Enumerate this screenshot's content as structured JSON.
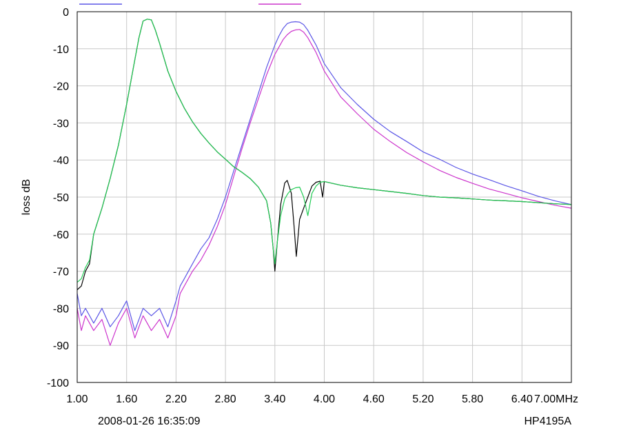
{
  "footer": {
    "timestamp": "2008-01-26 16:35:09",
    "instrument": "HP4195A"
  },
  "chart_data": {
    "type": "line",
    "title": "",
    "xlabel": "",
    "ylabel": "loss dB",
    "x_unit": "MHz",
    "xlim": [
      1.0,
      7.0
    ],
    "ylim": [
      -100,
      0
    ],
    "x_ticks": [
      "1.00",
      "1.60",
      "2.20",
      "2.80",
      "3.40",
      "4.00",
      "4.60",
      "5.20",
      "5.80",
      "6.40",
      "7.00MHz"
    ],
    "x_tick_values": [
      1.0,
      1.6,
      2.2,
      2.8,
      3.4,
      4.0,
      4.6,
      5.2,
      5.8,
      6.4,
      7.0
    ],
    "y_ticks": [
      "0",
      "-10",
      "-20",
      "-30",
      "-40",
      "-50",
      "-60",
      "-70",
      "-80",
      "-90",
      "-100"
    ],
    "y_tick_values": [
      0,
      -10,
      -20,
      -30,
      -40,
      -50,
      -60,
      -70,
      -80,
      -90,
      -100
    ],
    "grid": true,
    "legend": "top",
    "series": [
      {
        "name": "",
        "color": "#5a55e6",
        "x": [
          1.0,
          1.05,
          1.1,
          1.2,
          1.3,
          1.4,
          1.5,
          1.6,
          1.7,
          1.8,
          1.9,
          2.0,
          2.1,
          2.2,
          2.25,
          2.3,
          2.4,
          2.5,
          2.6,
          2.7,
          2.8,
          2.9,
          3.0,
          3.1,
          3.2,
          3.3,
          3.4,
          3.45,
          3.5,
          3.55,
          3.6,
          3.65,
          3.7,
          3.75,
          3.8,
          3.9,
          4.0,
          4.2,
          4.4,
          4.6,
          4.8,
          5.0,
          5.2,
          5.4,
          5.6,
          5.8,
          6.0,
          6.2,
          6.4,
          6.6,
          6.8,
          7.0
        ],
        "y": [
          -76,
          -82,
          -80,
          -84,
          -80,
          -85,
          -82,
          -78,
          -86,
          -80,
          -82,
          -80,
          -85,
          -78,
          -74,
          -72,
          -68,
          -64,
          -61,
          -56,
          -50,
          -43,
          -36,
          -29,
          -22,
          -15,
          -9,
          -6.5,
          -4.5,
          -3.2,
          -2.8,
          -2.7,
          -2.8,
          -3.5,
          -5,
          -9,
          -14,
          -20.5,
          -25,
          -29,
          -32.3,
          -35,
          -37.8,
          -39.8,
          -42,
          -43.8,
          -45.3,
          -46.9,
          -48.3,
          -49.8,
          -51,
          -52
        ]
      },
      {
        "name": "",
        "color": "#cc33cc",
        "x": [
          1.0,
          1.05,
          1.1,
          1.2,
          1.3,
          1.4,
          1.5,
          1.6,
          1.7,
          1.8,
          1.9,
          2.0,
          2.1,
          2.2,
          2.25,
          2.3,
          2.4,
          2.5,
          2.6,
          2.7,
          2.8,
          2.9,
          3.0,
          3.1,
          3.2,
          3.3,
          3.4,
          3.5,
          3.55,
          3.6,
          3.65,
          3.7,
          3.75,
          3.8,
          3.9,
          4.0,
          4.2,
          4.4,
          4.6,
          4.8,
          5.0,
          5.2,
          5.4,
          5.6,
          5.8,
          6.0,
          6.2,
          6.4,
          6.6,
          6.8,
          7.0
        ],
        "y": [
          -80,
          -86,
          -82,
          -86,
          -83,
          -90,
          -84,
          -80,
          -88,
          -82,
          -86,
          -83,
          -88,
          -82,
          -76,
          -74,
          -70,
          -67,
          -63,
          -58,
          -52,
          -44.5,
          -37,
          -30,
          -23.5,
          -17,
          -11.5,
          -7.5,
          -6.2,
          -5.3,
          -4.9,
          -4.8,
          -5.5,
          -7,
          -11,
          -16,
          -23,
          -27.5,
          -31.7,
          -35,
          -38,
          -40.5,
          -42.8,
          -44.7,
          -46.3,
          -47.8,
          -49,
          -50.2,
          -51.2,
          -52.2,
          -53
        ]
      },
      {
        "name": "",
        "color": "#000000",
        "x": [
          1.0,
          1.05,
          1.1,
          1.15,
          1.2,
          1.3,
          1.4,
          1.5,
          1.6,
          1.7,
          1.75,
          1.8,
          1.85,
          1.9,
          1.95,
          2.0,
          2.1,
          2.2,
          2.3,
          2.4,
          2.5,
          2.6,
          2.7,
          2.8,
          2.9,
          3.0,
          3.1,
          3.2,
          3.3,
          3.35,
          3.38,
          3.4,
          3.43,
          3.47,
          3.52,
          3.55,
          3.6,
          3.63,
          3.66,
          3.7,
          3.75,
          3.8,
          3.85,
          3.9,
          3.95,
          3.98,
          4.0,
          4.2,
          4.4,
          4.6,
          4.8,
          5.0,
          5.2,
          5.4,
          5.6,
          5.8,
          6.0,
          6.2,
          6.4,
          6.6,
          6.8,
          7.0
        ],
        "y": [
          -75,
          -74,
          -70,
          -68,
          -60,
          -53,
          -45,
          -36,
          -25,
          -13,
          -7,
          -2.5,
          -2,
          -2.2,
          -5,
          -8.5,
          -16,
          -21.5,
          -26,
          -29.7,
          -32.8,
          -35.4,
          -37.8,
          -39.8,
          -41.8,
          -43.3,
          -45,
          -47.3,
          -51,
          -57,
          -64,
          -70,
          -62,
          -52,
          -46.2,
          -45.5,
          -49,
          -57,
          -66,
          -56,
          -53,
          -50,
          -47,
          -46,
          -45.7,
          -50,
          -45.8,
          -46.8,
          -47.5,
          -48,
          -48.5,
          -49,
          -49.6,
          -50,
          -50.2,
          -50.5,
          -50.8,
          -51,
          -51.2,
          -51.5,
          -51.8,
          -52
        ]
      },
      {
        "name": "",
        "color": "#22cc55",
        "x": [
          1.0,
          1.05,
          1.1,
          1.15,
          1.2,
          1.3,
          1.4,
          1.5,
          1.6,
          1.7,
          1.75,
          1.8,
          1.85,
          1.9,
          1.95,
          2.0,
          2.1,
          2.2,
          2.3,
          2.4,
          2.5,
          2.6,
          2.7,
          2.8,
          2.9,
          3.0,
          3.1,
          3.2,
          3.3,
          3.35,
          3.38,
          3.4,
          3.43,
          3.47,
          3.52,
          3.56,
          3.6,
          3.65,
          3.7,
          3.75,
          3.8,
          3.85,
          3.9,
          3.95,
          4.0,
          4.2,
          4.4,
          4.6,
          4.8,
          5.0,
          5.2,
          5.4,
          5.6,
          5.8,
          6.0,
          6.2,
          6.4,
          6.6,
          6.8,
          7.0
        ],
        "y": [
          -73,
          -72,
          -69,
          -67,
          -60,
          -53,
          -45,
          -36,
          -25,
          -13,
          -7,
          -2.5,
          -2,
          -2.2,
          -5,
          -8.5,
          -16,
          -21.5,
          -26,
          -29.7,
          -32.8,
          -35.4,
          -37.8,
          -39.8,
          -41.8,
          -43.3,
          -45,
          -47.3,
          -51,
          -57,
          -64,
          -68,
          -62,
          -55,
          -50.5,
          -49,
          -48,
          -47.5,
          -47.3,
          -50,
          -55,
          -49,
          -47,
          -46,
          -45.8,
          -46.8,
          -47.5,
          -48,
          -48.5,
          -49,
          -49.6,
          -50,
          -50.2,
          -50.5,
          -50.8,
          -51,
          -51.2,
          -51.5,
          -51.8,
          -52
        ]
      }
    ]
  }
}
